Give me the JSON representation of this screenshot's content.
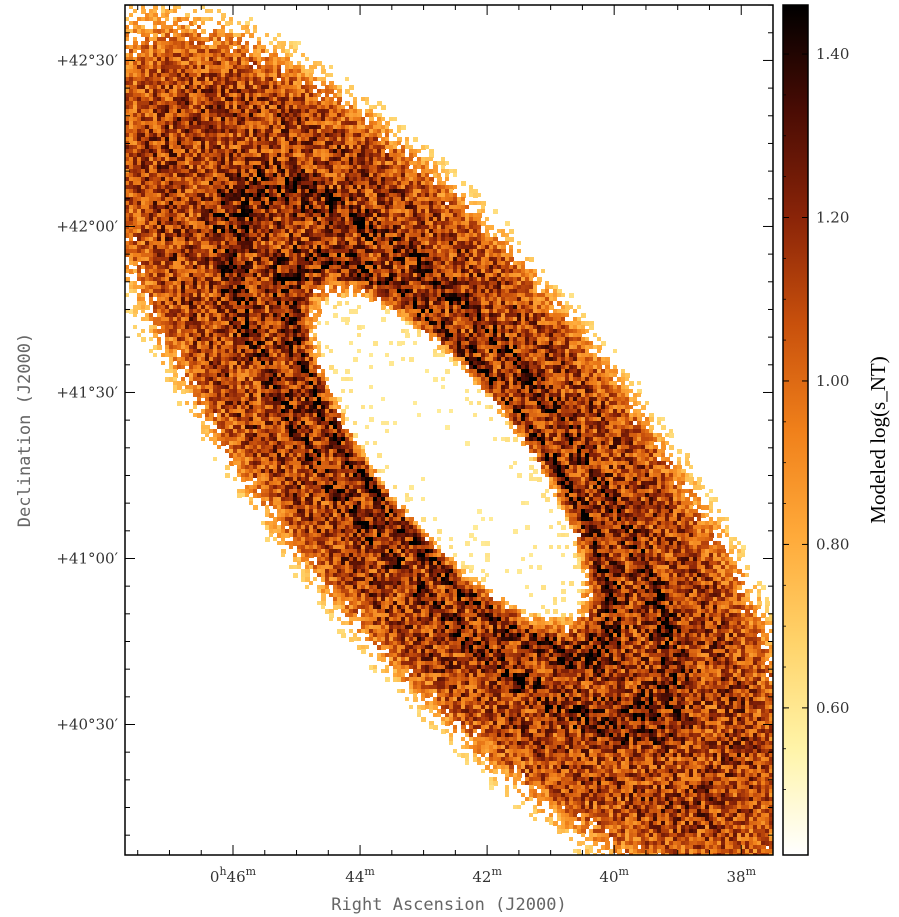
{
  "chart_data": {
    "type": "heatmap",
    "title": "",
    "xlabel": "Right Ascension (J2000)",
    "ylabel": "Declination (J2000)",
    "x_ticks": [
      {
        "value": 46,
        "prefix": "0",
        "unit_h": "h",
        "main": "46",
        "unit": "m"
      },
      {
        "value": 44,
        "prefix": "",
        "unit_h": "",
        "main": "44",
        "unit": "m"
      },
      {
        "value": 42,
        "prefix": "",
        "unit_h": "",
        "main": "42",
        "unit": "m"
      },
      {
        "value": 40,
        "prefix": "",
        "unit_h": "",
        "main": "40",
        "unit": "m"
      },
      {
        "value": 38,
        "prefix": "",
        "unit_h": "",
        "main": "38",
        "unit": "m"
      }
    ],
    "y_ticks": [
      {
        "value": 42.5,
        "label": "+42°30′"
      },
      {
        "value": 42.0,
        "label": "+42°00′"
      },
      {
        "value": 41.5,
        "label": "+41°30′"
      },
      {
        "value": 41.0,
        "label": "+41°00′"
      },
      {
        "value": 40.5,
        "label": "+40°30′"
      }
    ],
    "xlim_minutes": [
      47.7,
      37.5
    ],
    "ylim_deg": [
      40.107,
      42.667
    ],
    "colorbar": {
      "label": "Modeled log(s_NT)",
      "range": [
        0.42,
        1.46
      ],
      "ticks": [
        {
          "value": 1.4,
          "label": "1.40"
        },
        {
          "value": 1.2,
          "label": "1.20"
        },
        {
          "value": 1.0,
          "label": "1.00"
        },
        {
          "value": 0.8,
          "label": "0.80"
        },
        {
          "value": 0.6,
          "label": "0.60"
        }
      ],
      "colormap": [
        "#ffffff",
        "#fff4a8",
        "#ffd36a",
        "#ffaa3a",
        "#f0801a",
        "#c8500c",
        "#8a2408",
        "#4a0c04",
        "#000000"
      ]
    },
    "grid": false
  }
}
